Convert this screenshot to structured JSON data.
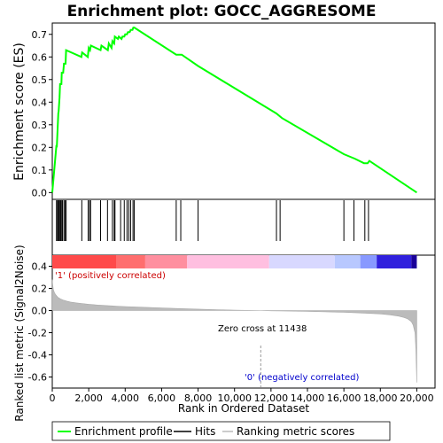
{
  "chart_data": {
    "type": "line",
    "title": "Enrichment plot: GOCC_AGGRESOME",
    "top_panel": {
      "ylabel": "Enrichment score (ES)",
      "ylim": [
        -0.03,
        0.75
      ],
      "yticks": [
        "0.0",
        "0.1",
        "0.2",
        "0.3",
        "0.4",
        "0.5",
        "0.6",
        "0.7"
      ],
      "series": [
        {
          "name": "Enrichment profile",
          "color": "#00ff00",
          "x": [
            0,
            230,
            250,
            330,
            350,
            400,
            430,
            500,
            520,
            600,
            640,
            730,
            760,
            1600,
            1640,
            1950,
            2000,
            2070,
            2120,
            2650,
            2700,
            3050,
            3100,
            3250,
            3300,
            3400,
            3430,
            3600,
            3650,
            3800,
            3850,
            3950,
            4000,
            4100,
            4150,
            4250,
            4300,
            4400,
            4450,
            4500,
            6800,
            7100,
            8000,
            12300,
            12600,
            16000,
            16600,
            17100,
            17300,
            17400,
            20000
          ],
          "y": [
            0.0,
            0.21,
            0.2,
            0.35,
            0.36,
            0.42,
            0.48,
            0.48,
            0.53,
            0.53,
            0.57,
            0.57,
            0.63,
            0.6,
            0.62,
            0.6,
            0.64,
            0.63,
            0.65,
            0.63,
            0.65,
            0.63,
            0.66,
            0.64,
            0.67,
            0.66,
            0.69,
            0.68,
            0.69,
            0.68,
            0.69,
            0.69,
            0.7,
            0.7,
            0.71,
            0.71,
            0.72,
            0.72,
            0.73,
            0.73,
            0.61,
            0.61,
            0.56,
            0.35,
            0.33,
            0.17,
            0.15,
            0.13,
            0.13,
            0.14,
            0.0
          ]
        }
      ]
    },
    "hits_panel": {
      "hits": [
        230,
        290,
        330,
        380,
        430,
        470,
        500,
        560,
        640,
        700,
        760,
        1620,
        1970,
        2050,
        2100,
        2650,
        3030,
        3300,
        3400,
        3440,
        3750,
        3950,
        4100,
        4200,
        4300,
        4430,
        4500,
        6800,
        7050,
        8000,
        12300,
        12500,
        16000,
        16550,
        17150,
        17350
      ]
    },
    "bottom_panel": {
      "ylabel": "Ranked list metric (Signal2Noise)",
      "ylim": [
        -0.7,
        0.5
      ],
      "yticks": [
        "0.4",
        "0.2",
        "0.0",
        "-0.2",
        "-0.4",
        "-0.6"
      ],
      "ranked_metric": {
        "x": [
          0,
          20,
          60,
          120,
          200,
          300,
          450,
          600,
          800,
          1000,
          1300,
          1600,
          2000,
          2500,
          3000,
          3500,
          4000,
          5000,
          6000,
          7000,
          8000,
          9000,
          10000,
          11000,
          11438,
          12000,
          13000,
          14000,
          15000,
          16000,
          17000,
          18000,
          18500,
          19000,
          19300,
          19500,
          19700,
          19800,
          19900,
          19950,
          20000
        ],
        "y": [
          0.28,
          0.24,
          0.19,
          0.16,
          0.14,
          0.12,
          0.105,
          0.095,
          0.085,
          0.077,
          0.07,
          0.064,
          0.057,
          0.05,
          0.045,
          0.04,
          0.036,
          0.03,
          0.024,
          0.018,
          0.013,
          0.008,
          0.004,
          0.001,
          0.0,
          -0.002,
          -0.005,
          -0.008,
          -0.012,
          -0.016,
          -0.022,
          -0.03,
          -0.038,
          -0.05,
          -0.062,
          -0.075,
          -0.1,
          -0.13,
          -0.2,
          -0.35,
          -0.65
        ]
      },
      "positive_label": "'1' (positively correlated)",
      "negative_label": "'0' (negatively correlated)",
      "zero_cross_label": "Zero cross at 11438",
      "zero_cross": 11438
    },
    "xlabel": "Rank in Ordered Dataset",
    "xlim": [
      0,
      21000
    ],
    "xticks": [
      "0",
      "2,000",
      "4,000",
      "6,000",
      "8,000",
      "10,000",
      "12,000",
      "14,000",
      "16,000",
      "18,000",
      "20,000"
    ],
    "xtick_values": [
      0,
      2000,
      4000,
      6000,
      8000,
      10000,
      12000,
      14000,
      16000,
      18000,
      20000
    ],
    "colorbar_segments": [
      {
        "from": 0,
        "to": 3500,
        "color": "#ff4a4a"
      },
      {
        "from": 3500,
        "to": 5100,
        "color": "#ff6e6e"
      },
      {
        "from": 5100,
        "to": 7400,
        "color": "#ff8f9f"
      },
      {
        "from": 7400,
        "to": 11900,
        "color": "#ffbfe0"
      },
      {
        "from": 11900,
        "to": 15500,
        "color": "#d8d8ff"
      },
      {
        "from": 15500,
        "to": 16900,
        "color": "#b8c8ff"
      },
      {
        "from": 16900,
        "to": 17800,
        "color": "#8899ff"
      },
      {
        "from": 17800,
        "to": 19700,
        "color": "#3020dd"
      },
      {
        "from": 19700,
        "to": 20000,
        "color": "#1a0099"
      }
    ],
    "legend": [
      {
        "label": "Enrichment profile",
        "color": "#00ff00"
      },
      {
        "label": "Hits",
        "color": "#000000"
      },
      {
        "label": "Ranking metric scores",
        "color": "#bbbbbb"
      }
    ],
    "grid": false
  }
}
